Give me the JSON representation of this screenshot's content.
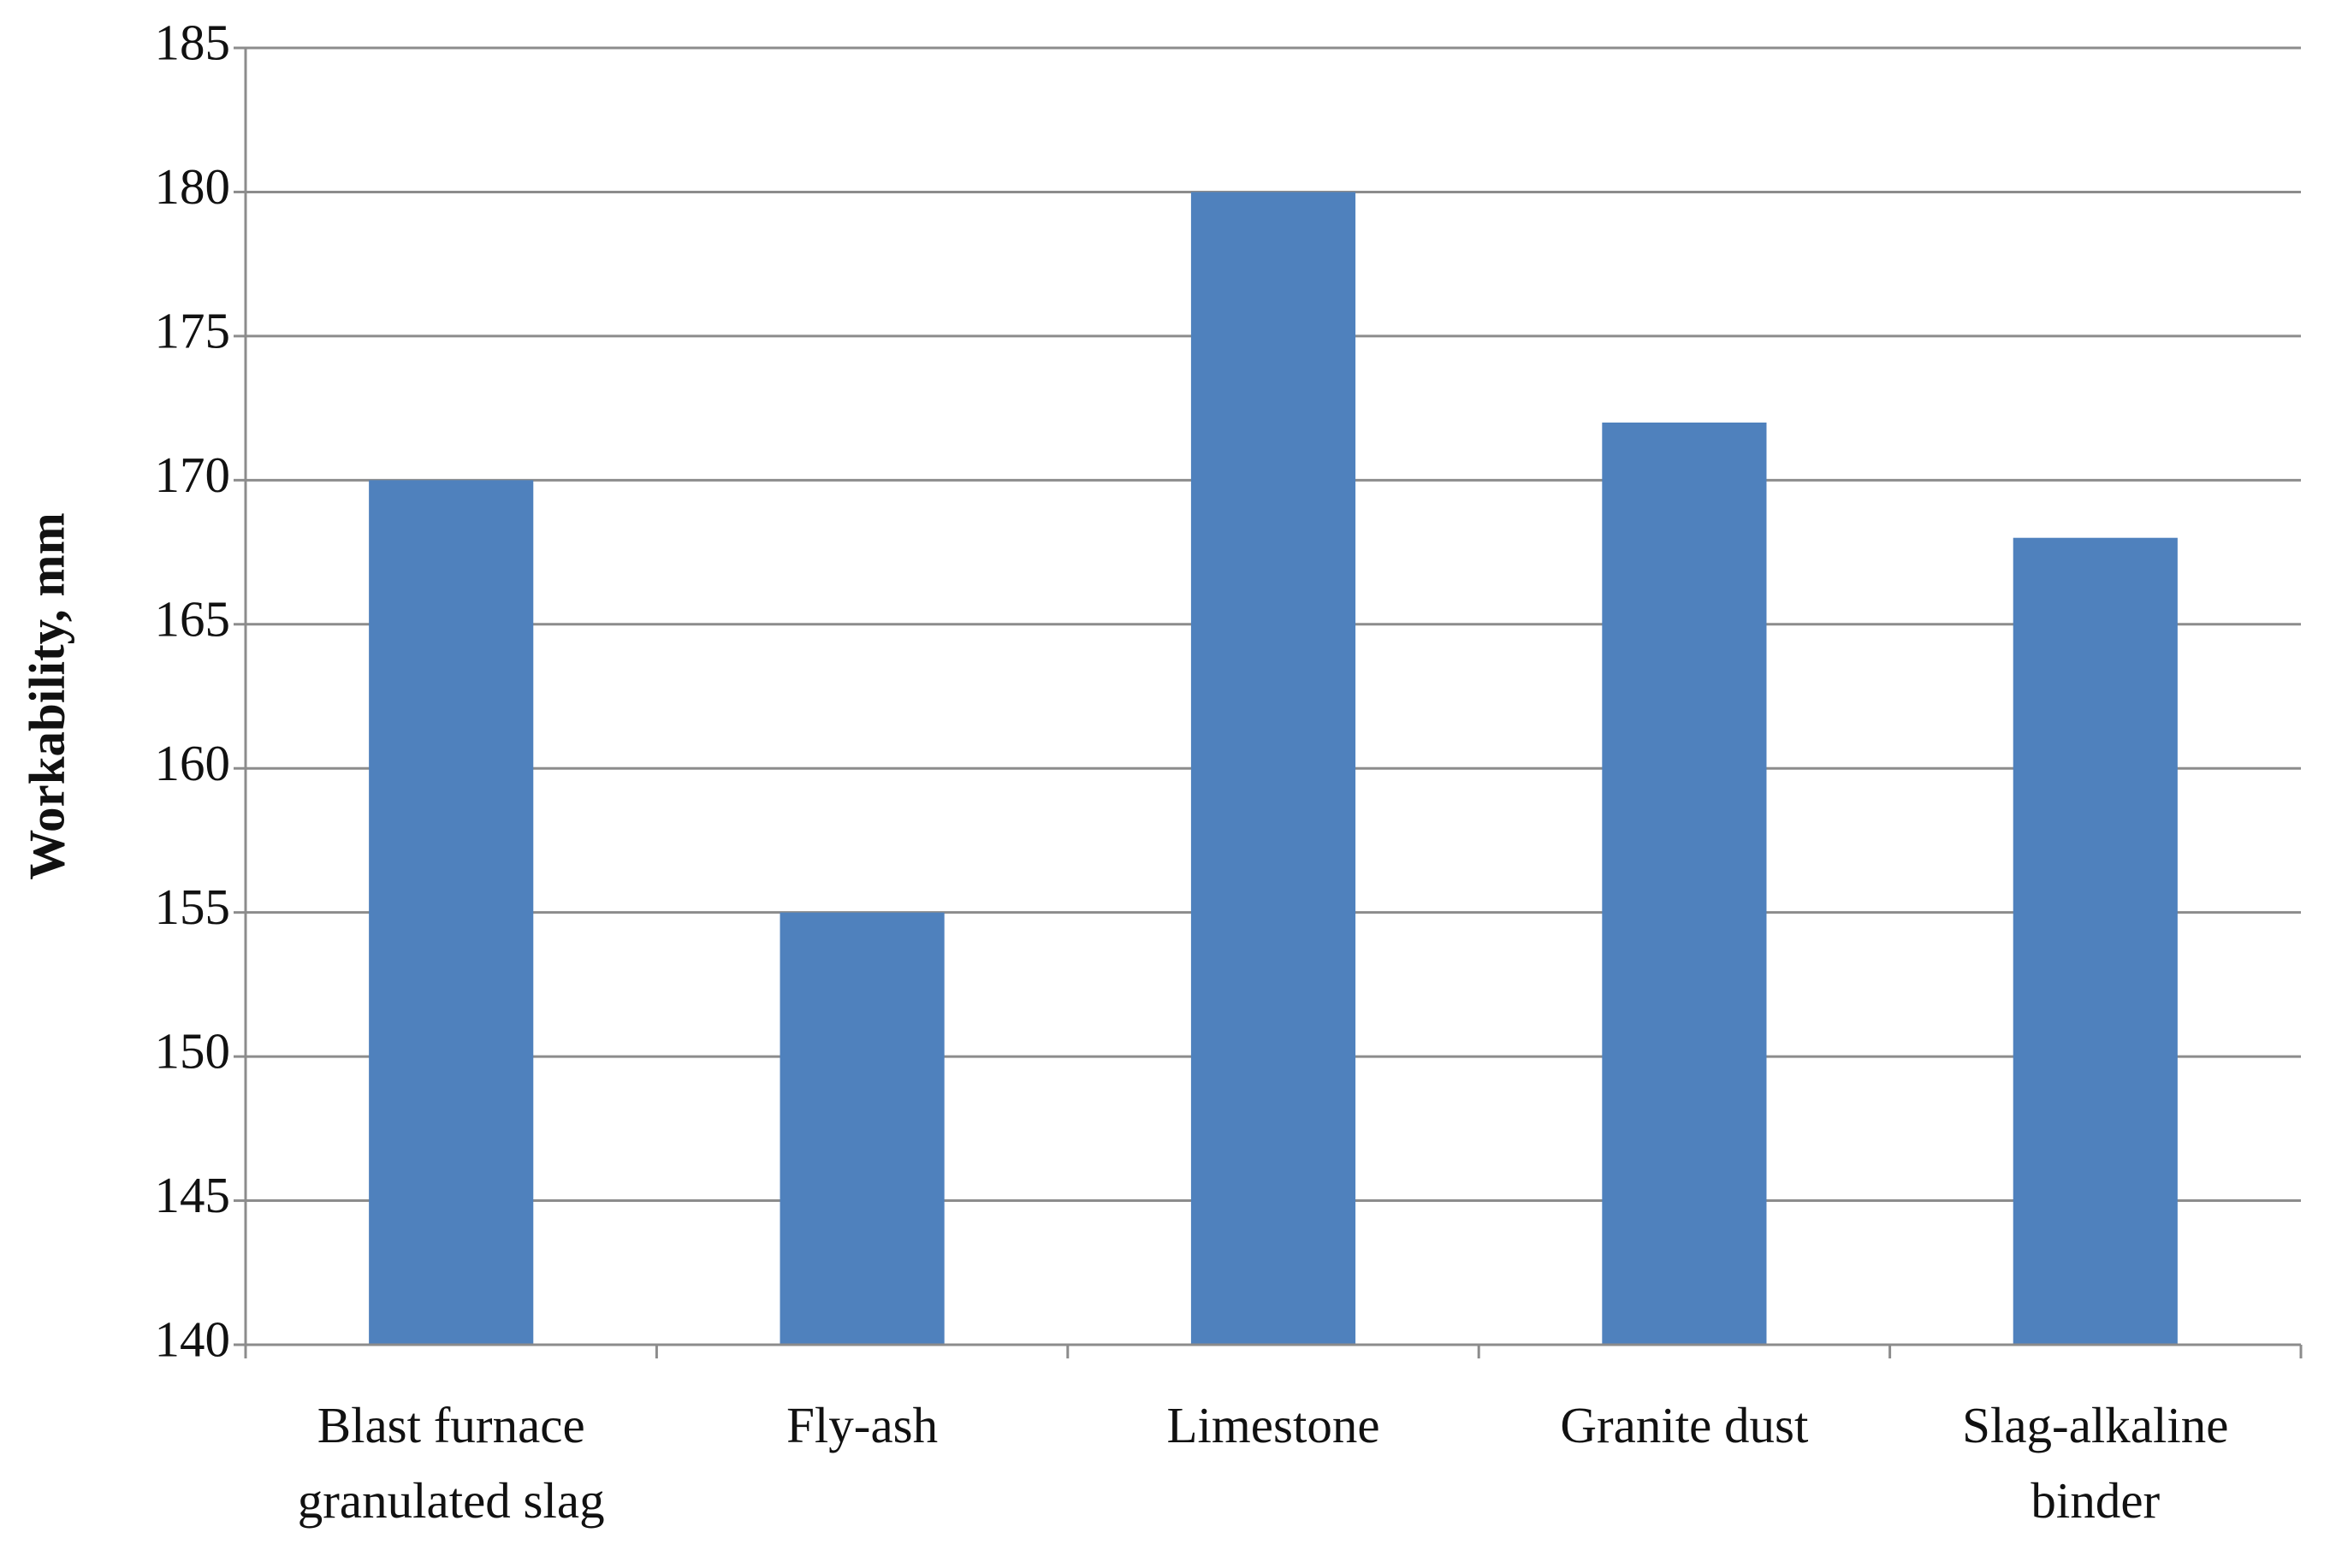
{
  "chart_data": {
    "type": "bar",
    "y_label": "Workability, mm",
    "categories": [
      "Blast furnace granulated slag",
      "Fly-ash",
      "Limestone",
      "Granite dust",
      "Slag-alkaline binder"
    ],
    "values": [
      170,
      155,
      180,
      172,
      168
    ],
    "color": "#4f81bd",
    "ylim": [
      140,
      185
    ],
    "yticks": [
      140,
      145,
      150,
      155,
      160,
      165,
      170,
      175,
      180,
      185
    ],
    "grid": true
  }
}
